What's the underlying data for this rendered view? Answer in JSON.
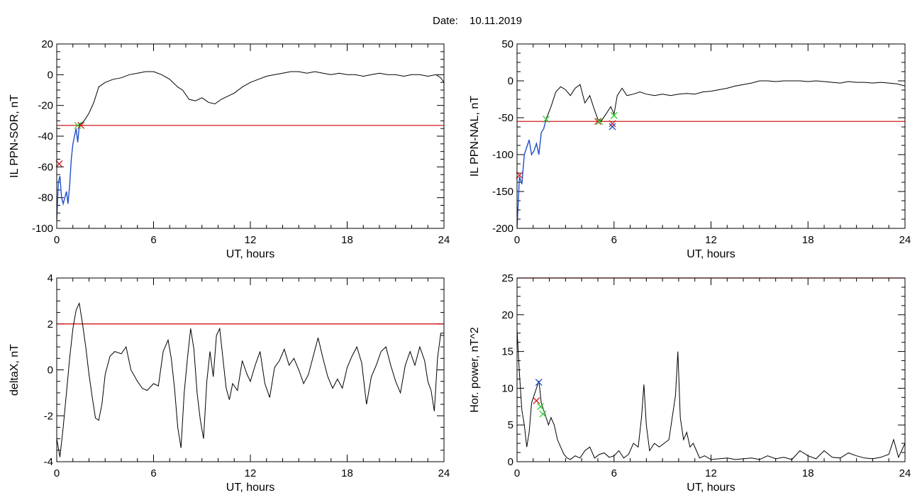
{
  "header": {
    "date_label": "Date:",
    "date_value": "10.11.2019"
  },
  "colors": {
    "line": "#000000",
    "threshold": "#cc0000",
    "highlight": "#1f4fc8",
    "marker_green": "#2fcc2f",
    "marker_red": "#cc2222",
    "marker_blue": "#1f4fc8"
  },
  "chart_data": [
    {
      "type": "line",
      "xlabel": "UT, hours",
      "ylabel": "IL PPN-SOR, nT",
      "xlim": [
        0,
        24
      ],
      "ylim": [
        -100,
        20
      ],
      "xticks": [
        0,
        6,
        12,
        18,
        24
      ],
      "xtick_labels": [
        "0",
        "6",
        "12",
        "18",
        "24"
      ],
      "yticks": [
        -100,
        -80,
        -60,
        -40,
        -20,
        0,
        20
      ],
      "ytick_labels": [
        "-100",
        "-80",
        "-60",
        "-40",
        "-20",
        "0",
        "20"
      ],
      "threshold": -33,
      "series": [
        {
          "color": "#000000",
          "x": [
            1.4,
            1.7,
            2.0,
            2.3,
            2.6,
            3.0,
            3.5,
            4.0,
            4.5,
            5.0,
            5.5,
            6.0,
            6.5,
            7.0,
            7.5,
            7.8,
            8.2,
            8.6,
            9.0,
            9.4,
            9.8,
            10.2,
            10.6,
            11.0,
            11.5,
            12.0,
            12.5,
            13.0,
            13.5,
            14.0,
            14.5,
            15.0,
            15.5,
            16.0,
            16.5,
            17.0,
            17.5,
            18.0,
            18.5,
            19.0,
            19.5,
            20.0,
            20.5,
            21.0,
            21.5,
            22.0,
            22.5,
            23.0,
            23.5,
            23.8,
            24.0
          ],
          "y": [
            -33,
            -30,
            -25,
            -18,
            -8,
            -5,
            -3,
            -2,
            0,
            1,
            2,
            2,
            0,
            -3,
            -8,
            -10,
            -16,
            -17,
            -15,
            -18,
            -19,
            -16,
            -14,
            -12,
            -8,
            -5,
            -3,
            -1,
            0,
            1,
            2,
            2,
            1,
            2,
            1,
            0,
            1,
            0,
            0,
            -1,
            0,
            1,
            0,
            0,
            -1,
            0,
            0,
            -1,
            0,
            -2,
            -5
          ]
        },
        {
          "color": "#1f4fc8",
          "x": [
            0.0,
            0.1,
            0.2,
            0.3,
            0.4,
            0.5,
            0.6,
            0.7,
            0.8,
            0.9,
            1.0,
            1.1,
            1.2,
            1.3,
            1.4
          ],
          "y": [
            -95,
            -70,
            -66,
            -80,
            -84,
            -80,
            -76,
            -84,
            -72,
            -55,
            -45,
            -40,
            -35,
            -44,
            -33
          ]
        }
      ],
      "markers": [
        {
          "x": 1.3,
          "y": -33,
          "color": "#2fcc2f",
          "symbol": "x"
        },
        {
          "x": 1.5,
          "y": -33,
          "color": "#cc2222",
          "symbol": "x"
        },
        {
          "x": 0.15,
          "y": -58,
          "color": "#cc2222",
          "symbol": "x"
        }
      ]
    },
    {
      "type": "line",
      "xlabel": "UT, hours",
      "ylabel": "IL PPN-NAL, nT",
      "xlim": [
        0,
        24
      ],
      "ylim": [
        -200,
        50
      ],
      "xticks": [
        0,
        6,
        12,
        18,
        24
      ],
      "xtick_labels": [
        "0",
        "6",
        "12",
        "18",
        "24"
      ],
      "yticks": [
        -200,
        -150,
        -100,
        -50,
        0,
        50
      ],
      "ytick_labels": [
        "-200",
        "-150",
        "-100",
        "-50",
        "0",
        "50"
      ],
      "threshold": -55,
      "series": [
        {
          "color": "#000000",
          "x": [
            1.8,
            2.1,
            2.4,
            2.7,
            3.0,
            3.3,
            3.6,
            3.9,
            4.2,
            4.5,
            4.8,
            5.0,
            5.2,
            5.5,
            5.8,
            6.0,
            6.2,
            6.5,
            6.8,
            7.2,
            7.6,
            8.0,
            8.5,
            9.0,
            9.5,
            10.0,
            10.5,
            11.0,
            11.5,
            12.0,
            12.5,
            13.0,
            13.5,
            14.0,
            14.5,
            15.0,
            15.5,
            16.0,
            16.5,
            17.0,
            17.5,
            18.0,
            18.5,
            19.0,
            19.5,
            20.0,
            20.5,
            21.0,
            21.5,
            22.0,
            22.5,
            23.0,
            23.5,
            24.0
          ],
          "y": [
            -52,
            -35,
            -15,
            -8,
            -12,
            -20,
            -10,
            -5,
            -30,
            -20,
            -40,
            -52,
            -55,
            -45,
            -35,
            -45,
            -20,
            -10,
            -20,
            -18,
            -15,
            -18,
            -20,
            -18,
            -20,
            -18,
            -17,
            -18,
            -15,
            -14,
            -12,
            -10,
            -7,
            -5,
            -3,
            0,
            0,
            -1,
            0,
            0,
            0,
            -1,
            0,
            -1,
            -2,
            -3,
            -1,
            -2,
            -2,
            -3,
            -2,
            -3,
            -4,
            -7
          ]
        },
        {
          "color": "#1f4fc8",
          "x": [
            0.0,
            0.15,
            0.3,
            0.45,
            0.6,
            0.75,
            0.9,
            1.05,
            1.2,
            1.35,
            1.5,
            1.65,
            1.8
          ],
          "y": [
            -200,
            -130,
            -140,
            -100,
            -90,
            -80,
            -100,
            -95,
            -85,
            -100,
            -70,
            -65,
            -52
          ]
        }
      ],
      "markers": [
        {
          "x": 1.8,
          "y": -52,
          "color": "#2fcc2f",
          "symbol": "x"
        },
        {
          "x": 5.0,
          "y": -55,
          "color": "#cc2222",
          "symbol": "x"
        },
        {
          "x": 5.1,
          "y": -55,
          "color": "#2fcc2f",
          "symbol": "x"
        },
        {
          "x": 5.9,
          "y": -58,
          "color": "#cc2222",
          "symbol": "x"
        },
        {
          "x": 5.9,
          "y": -62,
          "color": "#1f4fc8",
          "symbol": "x"
        },
        {
          "x": 6.0,
          "y": -47,
          "color": "#2fcc2f",
          "symbol": "x"
        },
        {
          "x": 0.15,
          "y": -128,
          "color": "#cc2222",
          "symbol": "x"
        }
      ]
    },
    {
      "type": "line",
      "xlabel": "UT, hours",
      "ylabel": "deltaX, nT",
      "xlim": [
        0,
        24
      ],
      "ylim": [
        -4,
        4
      ],
      "xticks": [
        0,
        6,
        12,
        18,
        24
      ],
      "xtick_labels": [
        "0",
        "6",
        "12",
        "18",
        "24"
      ],
      "yticks": [
        -4,
        -2,
        0,
        2,
        4
      ],
      "ytick_labels": [
        "-4",
        "-2",
        "0",
        "2",
        "4"
      ],
      "threshold": 2,
      "series": [
        {
          "color": "#000000",
          "x": [
            0.0,
            0.2,
            0.4,
            0.6,
            0.8,
            1.0,
            1.2,
            1.4,
            1.6,
            1.8,
            2.0,
            2.2,
            2.4,
            2.6,
            2.8,
            3.0,
            3.3,
            3.6,
            4.0,
            4.3,
            4.6,
            5.0,
            5.3,
            5.6,
            6.0,
            6.3,
            6.6,
            6.9,
            7.1,
            7.3,
            7.5,
            7.7,
            7.9,
            8.1,
            8.3,
            8.5,
            8.7,
            8.9,
            9.1,
            9.3,
            9.5,
            9.7,
            9.9,
            10.1,
            10.3,
            10.5,
            10.7,
            10.9,
            11.2,
            11.5,
            11.8,
            12.0,
            12.3,
            12.6,
            12.9,
            13.2,
            13.5,
            13.8,
            14.1,
            14.4,
            14.7,
            15.0,
            15.3,
            15.6,
            15.9,
            16.2,
            16.5,
            16.8,
            17.1,
            17.4,
            17.7,
            18.0,
            18.3,
            18.6,
            18.9,
            19.2,
            19.5,
            19.8,
            20.1,
            20.4,
            20.7,
            21.0,
            21.3,
            21.6,
            21.9,
            22.2,
            22.5,
            22.8,
            23.0,
            23.2,
            23.4,
            23.6,
            23.8,
            24.0
          ],
          "y": [
            -3.0,
            -3.8,
            -2.5,
            -1.0,
            0.5,
            1.8,
            2.6,
            2.9,
            2.0,
            1.0,
            -0.2,
            -1.2,
            -2.1,
            -2.2,
            -1.5,
            -0.2,
            0.6,
            0.8,
            0.7,
            1.0,
            0.0,
            -0.5,
            -0.8,
            -0.9,
            -0.6,
            -0.7,
            0.8,
            1.3,
            0.5,
            -0.8,
            -2.5,
            -3.4,
            -1.0,
            0.5,
            1.8,
            0.9,
            -1.0,
            -2.2,
            -3.0,
            -0.5,
            0.8,
            -0.3,
            1.5,
            1.8,
            0.5,
            -0.8,
            -1.3,
            -0.6,
            -0.9,
            0.4,
            -0.2,
            -0.5,
            0.2,
            0.8,
            -0.6,
            -1.2,
            0.1,
            0.4,
            0.9,
            0.2,
            0.5,
            0.0,
            -0.6,
            -0.2,
            0.6,
            1.4,
            0.5,
            -0.3,
            -0.8,
            -0.4,
            -0.8,
            0.1,
            0.6,
            1.0,
            0.3,
            -1.5,
            -0.3,
            0.2,
            0.8,
            1.0,
            0.2,
            -0.5,
            -1.0,
            0.2,
            0.8,
            0.2,
            1.0,
            0.4,
            -0.5,
            -0.9,
            -1.8,
            0.5,
            1.6,
            1.6
          ]
        }
      ],
      "markers": []
    },
    {
      "type": "line",
      "xlabel": "UT, hours",
      "ylabel": "Hor. power, nT^2",
      "xlim": [
        0,
        24
      ],
      "ylim": [
        0,
        25
      ],
      "xticks": [
        0,
        6,
        12,
        18,
        24
      ],
      "xtick_labels": [
        "0",
        "6",
        "12",
        "18",
        "24"
      ],
      "yticks": [
        0,
        5,
        10,
        15,
        20,
        25
      ],
      "ytick_labels": [
        "0",
        "5",
        "10",
        "15",
        "20",
        "25"
      ],
      "threshold": 25,
      "series": [
        {
          "color": "#000000",
          "x": [
            0.0,
            0.15,
            0.3,
            0.45,
            0.6,
            0.75,
            0.9,
            1.05,
            1.2,
            1.35,
            1.5,
            1.65,
            1.8,
            1.95,
            2.1,
            2.3,
            2.5,
            2.7,
            2.9,
            3.1,
            3.3,
            3.6,
            3.9,
            4.2,
            4.5,
            4.8,
            5.1,
            5.4,
            5.7,
            6.0,
            6.3,
            6.6,
            6.9,
            7.2,
            7.5,
            7.7,
            7.85,
            8.0,
            8.2,
            8.5,
            8.8,
            9.1,
            9.4,
            9.6,
            9.8,
            9.95,
            10.1,
            10.3,
            10.5,
            10.7,
            10.9,
            11.1,
            11.3,
            11.6,
            12.0,
            12.5,
            13.0,
            13.5,
            14.0,
            14.5,
            15.0,
            15.5,
            16.0,
            16.5,
            17.0,
            17.5,
            18.0,
            18.5,
            19.0,
            19.5,
            20.0,
            20.5,
            21.0,
            21.5,
            22.0,
            22.5,
            23.0,
            23.3,
            23.6,
            24.0
          ],
          "y": [
            18,
            12,
            7,
            5,
            2,
            4,
            8,
            9,
            10,
            11,
            8,
            7,
            6,
            5,
            6,
            5,
            3,
            2,
            1,
            0.5,
            0.3,
            0.8,
            0.5,
            1.5,
            2.0,
            0.5,
            1.0,
            1.2,
            0.6,
            0.8,
            1.5,
            0.5,
            1.0,
            2.5,
            2.0,
            6,
            10.5,
            5,
            1.5,
            2.5,
            2.0,
            2.5,
            3.0,
            6,
            9,
            15,
            6,
            3,
            4,
            2,
            2.5,
            1.5,
            0.5,
            0.8,
            0.3,
            0.4,
            0.5,
            0.3,
            0.4,
            0.5,
            0.3,
            0.8,
            0.4,
            0.6,
            0.3,
            1.5,
            0.8,
            0.4,
            1.5,
            0.6,
            0.5,
            1.2,
            0.8,
            0.5,
            0.4,
            0.6,
            1.0,
            3.0,
            0.6,
            2.5
          ]
        }
      ],
      "markers": [
        {
          "x": 1.2,
          "y": 8.3,
          "color": "#cc2222",
          "symbol": "x"
        },
        {
          "x": 1.35,
          "y": 10.8,
          "color": "#1f4fc8",
          "symbol": "x"
        },
        {
          "x": 1.45,
          "y": 7.5,
          "color": "#2fcc2f",
          "symbol": "x"
        },
        {
          "x": 1.6,
          "y": 6.5,
          "color": "#2fcc2f",
          "symbol": "x"
        }
      ]
    }
  ]
}
